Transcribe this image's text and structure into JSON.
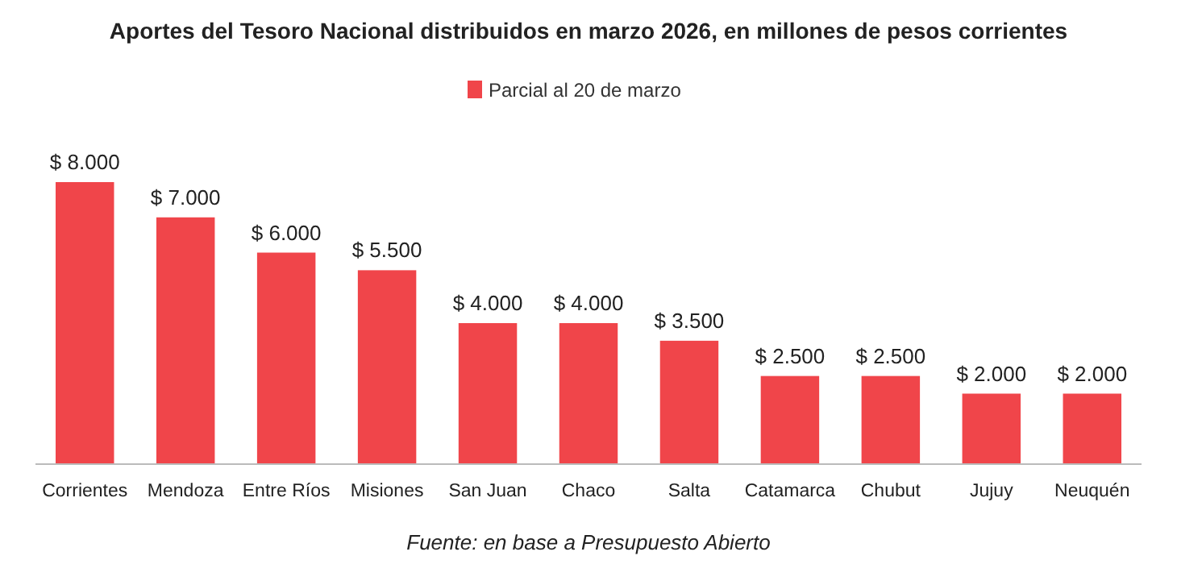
{
  "chart_data": {
    "type": "bar",
    "title": "Aportes del Tesoro Nacional distribuidos en marzo 2026, en millones de pesos corrientes",
    "categories": [
      "Corrientes",
      "Mendoza",
      "Entre Ríos",
      "Misiones",
      "San Juan",
      "Chaco",
      "Salta",
      "Catamarca",
      "Chubut",
      "Jujuy",
      "Neuquén"
    ],
    "series": [
      {
        "name": "Parcial al 20 de marzo",
        "color": "#f0454a",
        "values": [
          8000,
          7000,
          6000,
          5500,
          4000,
          4000,
          3500,
          2500,
          2500,
          2000,
          2000
        ],
        "value_labels": [
          "$ 8.000",
          "$ 7.000",
          "$ 6.000",
          "$ 5.500",
          "$ 4.000",
          "$ 4.000",
          "$ 3.500",
          "$ 2.500",
          "$ 2.500",
          "$ 2.000",
          "$ 2.000"
        ]
      }
    ],
    "legend": "top",
    "grid": false,
    "annotations": [
      "Fuente: en base a Presupuesto Abierto"
    ]
  }
}
